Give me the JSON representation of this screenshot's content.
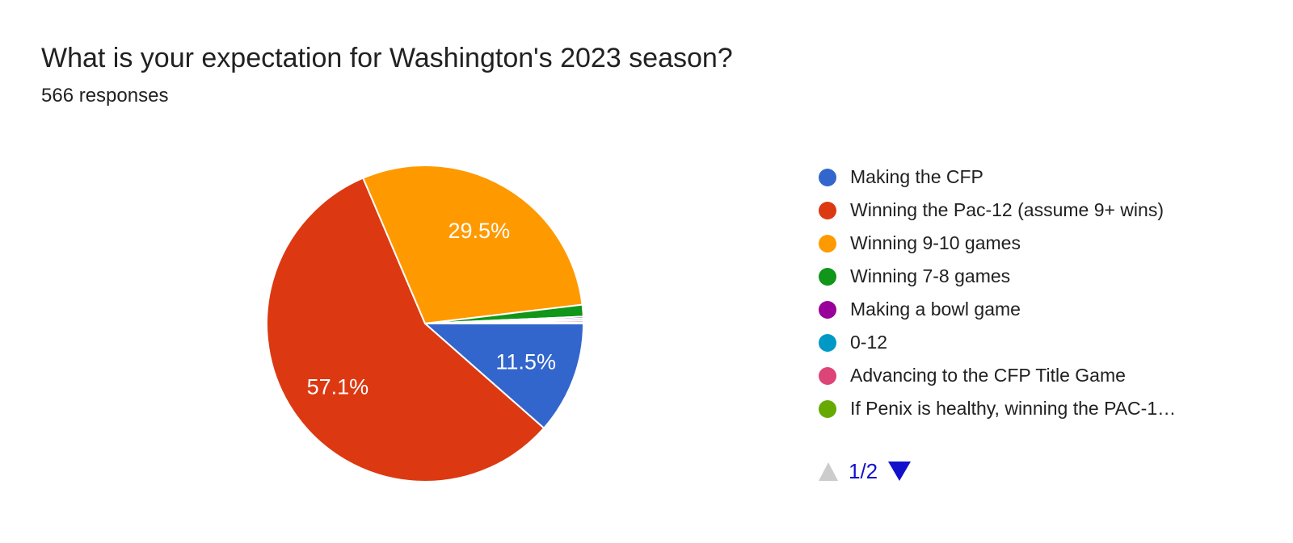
{
  "header": {
    "title": "What is your expectation for Washington's 2023 season?",
    "subtitle": "566 responses"
  },
  "chart_data": {
    "type": "pie",
    "title": "What is your expectation for Washington's 2023 season?",
    "subtitle": "566 responses",
    "total_responses": 566,
    "legend_position": "right",
    "start_angle_deg": 0,
    "direction": "clockwise",
    "slice_border_color": "#ffffff",
    "percent_label_color": "#ffffff",
    "min_percent_for_label": 5,
    "slices": [
      {
        "label": "Making the CFP",
        "color": "#3366CC",
        "percent": 11.5,
        "display_label": "11.5%"
      },
      {
        "label": "Winning the Pac-12 (assume 9+ wins)",
        "color": "#DC3912",
        "percent": 57.1,
        "display_label": "57.1%"
      },
      {
        "label": "Winning 9-10 games",
        "color": "#FF9900",
        "percent": 29.5,
        "display_label": "29.5%"
      },
      {
        "label": "Winning 7-8 games",
        "color": "#109618",
        "percent": 1.2
      },
      {
        "label": "Making a bowl game",
        "color": "#990099",
        "percent": 0.2
      },
      {
        "label": "0-12",
        "color": "#0099C6",
        "percent": 0.2
      },
      {
        "label": "Advancing to the CFP Title Game",
        "color": "#DD4477",
        "percent": 0.2
      },
      {
        "label": "If Penix is healthy, winning the PAC-1…",
        "color": "#66AA00",
        "percent": 0.1
      }
    ]
  },
  "pagination": {
    "label": "1/2",
    "page": 1,
    "pages": 2,
    "prev_color": "#CCCCCC",
    "next_color": "#1111CC",
    "label_color": "#1111CC"
  }
}
